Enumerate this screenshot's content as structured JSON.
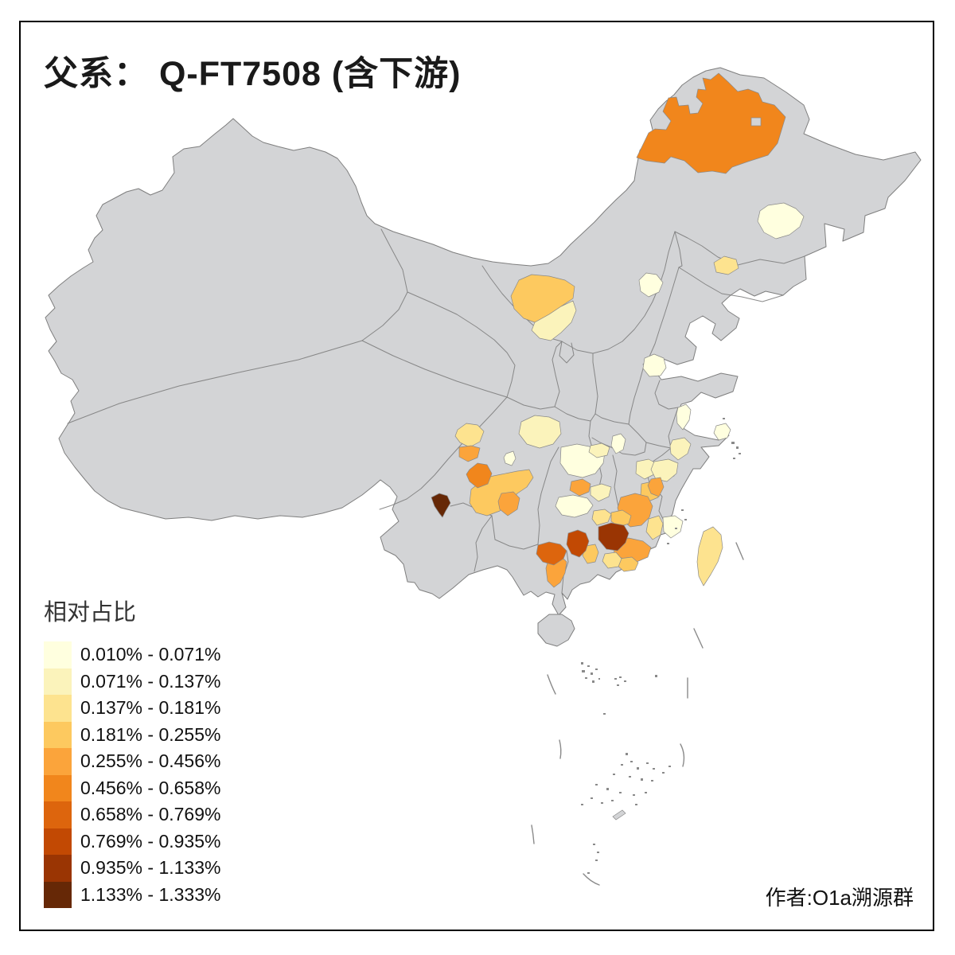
{
  "title": "父系： Q-FT7508 (含下游)",
  "author": "作者:O1a溯源群",
  "legend": {
    "title": "相对占比",
    "classes": [
      {
        "label": "0.010% - 0.071%",
        "color": "#FFFFDF"
      },
      {
        "label": "0.071% - 0.137%",
        "color": "#FBF3BB"
      },
      {
        "label": "0.137% - 0.181%",
        "color": "#FDE38F"
      },
      {
        "label": "0.181% - 0.255%",
        "color": "#FDC95F"
      },
      {
        "label": "0.255% - 0.456%",
        "color": "#FBA43B"
      },
      {
        "label": "0.456% - 0.658%",
        "color": "#F1861C"
      },
      {
        "label": "0.658% - 0.769%",
        "color": "#DD650D"
      },
      {
        "label": "0.769% - 0.935%",
        "color": "#C24903"
      },
      {
        "label": "0.935% - 1.133%",
        "color": "#9A3503"
      },
      {
        "label": "1.133% - 1.333%",
        "color": "#662806"
      }
    ]
  },
  "map": {
    "land_fill": "#D3D4D6",
    "border_color": "#7E7E7E",
    "sea_fill": "#FFFFFF",
    "frame_color": "#000000",
    "regions": [
      {
        "name": "da-hinggan-ling",
        "class": 6
      },
      {
        "name": "suihua",
        "class": 1
      },
      {
        "name": "chaoyang-fuxin",
        "class": 3
      },
      {
        "name": "beijing",
        "class": 1
      },
      {
        "name": "bayannur",
        "class": 4
      },
      {
        "name": "ordos",
        "class": 2
      },
      {
        "name": "anyang",
        "class": 1
      },
      {
        "name": "huaian",
        "class": 1
      },
      {
        "name": "shanghai",
        "class": 1
      },
      {
        "name": "hangzhou-shaoxing",
        "class": 2
      },
      {
        "name": "jinhua",
        "class": 2
      },
      {
        "name": "quzhou",
        "class": 5
      },
      {
        "name": "longyan",
        "class": 3
      },
      {
        "name": "zhangzhou-xiamen",
        "class": 1
      },
      {
        "name": "taiwan",
        "class": 3
      },
      {
        "name": "hanzhong",
        "class": 2
      },
      {
        "name": "tianshui",
        "class": 3
      },
      {
        "name": "longnan",
        "class": 5
      },
      {
        "name": "deyang",
        "class": 1
      },
      {
        "name": "mianyang-nw",
        "class": 6
      },
      {
        "name": "chengdu-basin",
        "class": 4
      },
      {
        "name": "zigong-yibin",
        "class": 5
      },
      {
        "name": "panzhihua",
        "class": 10
      },
      {
        "name": "zhangjiajie",
        "class": 5
      },
      {
        "name": "changde",
        "class": 2
      },
      {
        "name": "huaihua",
        "class": 1
      },
      {
        "name": "shaoyang",
        "class": 3
      },
      {
        "name": "hengyang",
        "class": 4
      },
      {
        "name": "yongzhou",
        "class": 8
      },
      {
        "name": "chenzhou",
        "class": 9
      },
      {
        "name": "guilin",
        "class": 7
      },
      {
        "name": "wuzhou-hezhou",
        "class": 5
      },
      {
        "name": "lianzhou",
        "class": 4
      },
      {
        "name": "qingyuan-east",
        "class": 3
      },
      {
        "name": "shaoguan-qingyuan",
        "class": 5
      },
      {
        "name": "heyuan",
        "class": 4
      },
      {
        "name": "ganzhou",
        "class": 5
      },
      {
        "name": "jian-yichun",
        "class": 4
      },
      {
        "name": "jiujiang",
        "class": 2
      },
      {
        "name": "huangshi-jingdezhen",
        "class": 2
      },
      {
        "name": "hubei-west",
        "class": 1
      },
      {
        "name": "xiangyang",
        "class": 1
      },
      {
        "name": "wuhan-east",
        "class": 2
      }
    ]
  },
  "chart_data": {
    "type": "choropleth-map",
    "title": "父系： Q-FT7508 (含下游)",
    "legend_title": "相对占比",
    "bins": [
      "0.010% - 0.071%",
      "0.071% - 0.137%",
      "0.137% - 0.181%",
      "0.181% - 0.255%",
      "0.255% - 0.456%",
      "0.456% - 0.658%",
      "0.658% - 0.769%",
      "0.769% - 0.935%",
      "0.935% - 1.133%",
      "1.133% - 1.333%"
    ],
    "note": "Prefecture-level choropleth of China; uncolored prefectures are gray (no data)."
  }
}
